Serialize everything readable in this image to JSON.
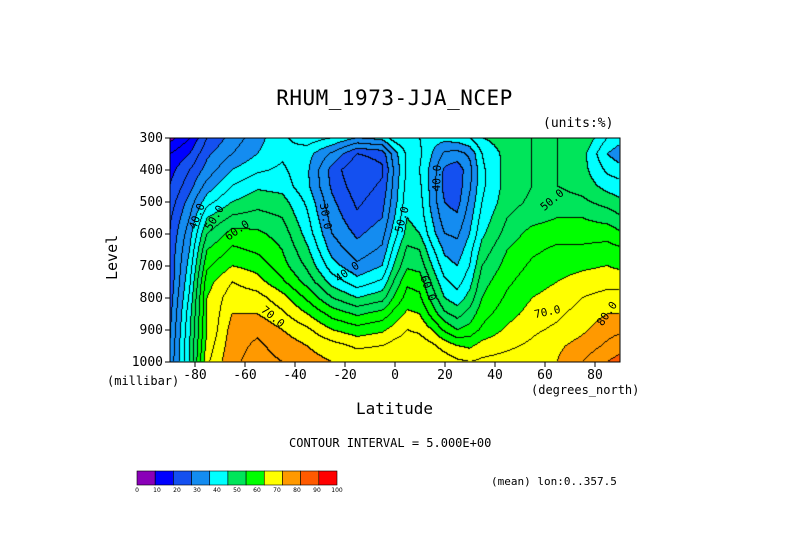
{
  "chart_data": {
    "type": "heatmap",
    "subtype": "filled-contour",
    "title": "RHUM_1973-JJA_NCEP",
    "units_note": "(units:%)",
    "xlabel": "Latitude",
    "xunit": "(degrees_north)",
    "ylabel": "Level",
    "yunit": "(millibar)",
    "xlim": [
      -90,
      90
    ],
    "ylim": [
      1000,
      300
    ],
    "xticks": [
      -80,
      -60,
      -40,
      -20,
      0,
      20,
      40,
      60,
      80
    ],
    "yticks": [
      300,
      400,
      500,
      600,
      700,
      800,
      900,
      1000
    ],
    "contour_interval_text": "CONTOUR INTERVAL = 5.000E+00",
    "mean_note": "(mean) lon:0..357.5",
    "contour_interval": 5,
    "colorbar": {
      "levels": [
        0,
        10,
        20,
        30,
        40,
        50,
        60,
        70,
        80,
        90,
        100
      ],
      "colors": [
        "#8a00b8",
        "#0000ff",
        "#1450f0",
        "#148cf0",
        "#00ffff",
        "#00e55a",
        "#00ff00",
        "#ffff00",
        "#ff9900",
        "#ff5a00",
        "#ff0000"
      ]
    },
    "grid_x": [
      -90,
      -82,
      -75,
      -65,
      -55,
      -45,
      -35,
      -25,
      -15,
      -5,
      0,
      5,
      10,
      15,
      20,
      25,
      30,
      35,
      45,
      55,
      65,
      75,
      85,
      90
    ],
    "grid_y": [
      300,
      350,
      400,
      450,
      500,
      550,
      600,
      650,
      700,
      750,
      800,
      850,
      900,
      950,
      1000
    ],
    "values": [
      [
        8,
        15,
        25,
        32,
        38,
        44,
        48,
        45,
        40,
        42,
        48,
        49,
        45,
        42,
        42,
        43,
        45,
        50,
        53,
        55,
        55,
        55,
        45,
        42
      ],
      [
        15,
        20,
        29,
        35,
        40,
        44,
        42,
        34,
        25,
        27,
        38,
        46,
        46,
        40,
        34,
        33,
        36,
        45,
        52,
        55,
        55,
        52,
        40,
        37
      ],
      [
        18,
        25,
        32,
        40,
        44,
        46,
        41,
        28,
        20,
        24,
        36,
        46,
        45,
        38,
        29,
        27,
        33,
        44,
        52,
        55,
        55,
        52,
        44,
        42
      ],
      [
        20,
        28,
        37,
        45,
        49,
        48,
        41,
        29,
        22,
        26,
        37,
        47,
        46,
        38,
        28,
        27,
        34,
        44,
        52,
        55,
        55,
        53,
        48,
        47
      ],
      [
        22,
        32,
        43,
        50,
        53,
        52,
        44,
        31,
        24,
        28,
        38,
        48,
        47,
        38,
        30,
        28,
        36,
        45,
        53,
        56,
        57,
        56,
        53,
        51
      ],
      [
        24,
        35,
        50,
        56,
        57,
        55,
        46,
        33,
        26,
        30,
        40,
        50,
        48,
        40,
        32,
        31,
        38,
        47,
        55,
        58,
        60,
        60,
        58,
        56
      ],
      [
        25,
        38,
        55,
        62,
        61,
        58,
        48,
        35,
        29,
        33,
        43,
        52,
        50,
        42,
        35,
        34,
        40,
        49,
        57,
        62,
        63,
        63,
        63,
        61
      ],
      [
        26,
        40,
        60,
        66,
        64,
        60,
        51,
        38,
        32,
        36,
        47,
        56,
        55,
        46,
        39,
        37,
        43,
        52,
        60,
        64,
        66,
        66,
        67,
        66
      ],
      [
        26,
        42,
        64,
        70,
        68,
        62,
        54,
        42,
        36,
        40,
        51,
        59,
        58,
        50,
        42,
        40,
        45,
        55,
        62,
        66,
        68,
        69,
        70,
        69
      ],
      [
        26,
        44,
        68,
        75,
        72,
        66,
        58,
        48,
        42,
        46,
        56,
        64,
        63,
        54,
        46,
        43,
        48,
        58,
        64,
        68,
        70,
        72,
        73,
        73
      ],
      [
        27,
        46,
        70,
        78,
        77,
        72,
        64,
        55,
        50,
        53,
        61,
        67,
        66,
        58,
        50,
        47,
        52,
        60,
        66,
        70,
        72,
        75,
        77,
        77
      ],
      [
        28,
        48,
        70,
        80,
        80,
        76,
        70,
        63,
        59,
        62,
        67,
        71,
        70,
        63,
        56,
        53,
        57,
        63,
        68,
        72,
        74,
        77,
        80,
        80
      ],
      [
        29,
        49,
        70,
        82,
        84,
        80,
        76,
        70,
        67,
        69,
        72,
        75,
        74,
        70,
        64,
        60,
        62,
        66,
        71,
        74,
        76,
        79,
        83,
        84
      ],
      [
        30,
        50,
        72,
        83,
        86,
        83,
        80,
        77,
        74,
        75,
        77,
        78,
        78,
        76,
        73,
        70,
        69,
        72,
        74,
        76,
        79,
        82,
        86,
        88
      ],
      [
        31,
        50,
        74,
        84,
        87,
        85,
        82,
        80,
        79,
        79,
        80,
        80,
        80,
        79,
        78,
        76,
        75,
        76,
        77,
        78,
        80,
        85,
        90,
        92
      ]
    ],
    "contour_labels": [
      {
        "text": "40.0",
        "x": -79,
        "y": 545,
        "angle": -70
      },
      {
        "text": "50.0",
        "x": -72,
        "y": 550,
        "angle": -60
      },
      {
        "text": "60.0",
        "x": -63,
        "y": 590,
        "angle": -35
      },
      {
        "text": "30.0",
        "x": -28,
        "y": 545,
        "angle": 80
      },
      {
        "text": "40.0",
        "x": -19,
        "y": 720,
        "angle": -35
      },
      {
        "text": "50.0",
        "x": 3,
        "y": 555,
        "angle": -75
      },
      {
        "text": "60.0",
        "x": 13,
        "y": 770,
        "angle": 70
      },
      {
        "text": "40.0",
        "x": 17,
        "y": 425,
        "angle": -88
      },
      {
        "text": "50.0",
        "x": 63,
        "y": 495,
        "angle": -40
      },
      {
        "text": "70.0",
        "x": -49,
        "y": 860,
        "angle": 40
      },
      {
        "text": "70.0",
        "x": 61,
        "y": 845,
        "angle": -12
      },
      {
        "text": "80.0",
        "x": 85,
        "y": 850,
        "angle": -55
      }
    ]
  }
}
